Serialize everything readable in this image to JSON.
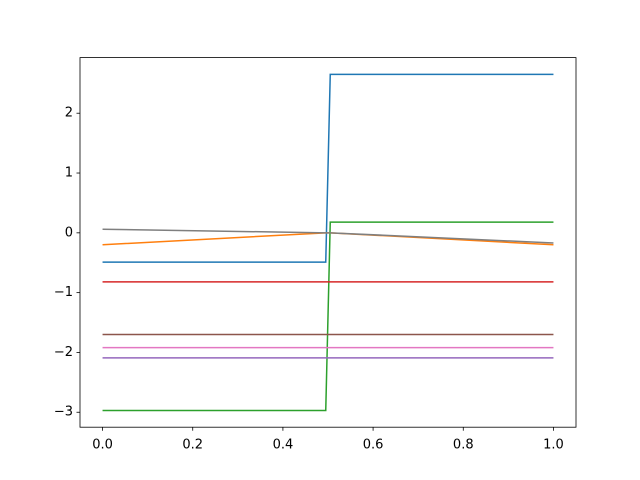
{
  "chart_data": {
    "type": "line",
    "x": [
      0,
      0.495,
      0.505,
      1
    ],
    "series": [
      {
        "color": "#1f77b4",
        "values": [
          -0.49,
          -0.49,
          2.65,
          2.65
        ]
      },
      {
        "color": "#ff7f0e",
        "values": [
          -0.2,
          0,
          0,
          -0.2
        ]
      },
      {
        "color": "#2ca02c",
        "values": [
          -2.97,
          -2.97,
          0.18,
          0.18
        ]
      },
      {
        "color": "#d62728",
        "values": [
          -0.82,
          -0.82,
          -0.82,
          -0.82
        ]
      },
      {
        "color": "#9467bd",
        "values": [
          -2.09,
          -2.09,
          -2.09,
          -2.09
        ]
      },
      {
        "color": "#8c564b",
        "values": [
          -1.7,
          -1.7,
          -1.7,
          -1.7
        ]
      },
      {
        "color": "#e377c2",
        "values": [
          -1.92,
          -1.92,
          -1.92,
          -1.92
        ]
      },
      {
        "color": "#7f7f7f",
        "values": [
          0.06,
          0,
          0,
          -0.17
        ]
      }
    ],
    "xlim": [
      -0.05,
      1.05
    ],
    "ylim": [
      -3.25,
      2.93
    ],
    "xticks": [
      {
        "value": 0,
        "label": "0.0"
      },
      0.2,
      0.4,
      0.6,
      0.8,
      {
        "value": 1,
        "label": "1.0"
      }
    ],
    "yticks": [
      {
        "value": -3,
        "label": "−3"
      },
      {
        "value": -2,
        "label": "−2"
      },
      {
        "value": -1,
        "label": "−1"
      },
      0,
      1,
      2
    ],
    "grid": false
  }
}
